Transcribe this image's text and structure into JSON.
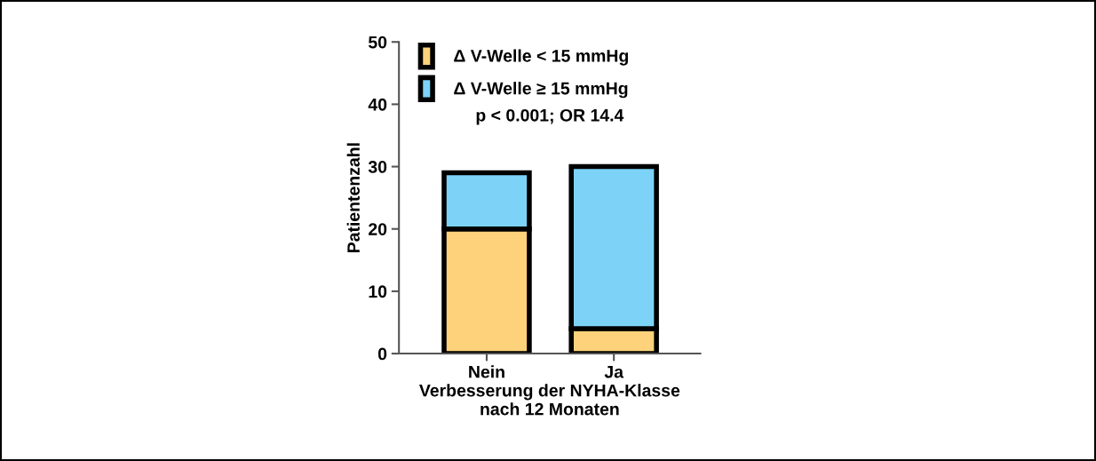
{
  "chart_data": {
    "type": "bar",
    "stacked": true,
    "categories": [
      "Nein",
      "Ja"
    ],
    "xlabel": "Verbesserung der NYHA-Klasse\nnach 12 Monaten",
    "ylabel": "Patientenzahl",
    "series": [
      {
        "name": "Δ V-Welle < 15 mmHg",
        "color": "#fdd27a",
        "values": [
          20,
          4
        ]
      },
      {
        "name": "Δ V-Welle ≥ 15 mmHg",
        "color": "#7dd3f7",
        "values": [
          9,
          26
        ]
      }
    ],
    "ylim": [
      0,
      50
    ],
    "yticks": [
      0,
      10,
      20,
      30,
      40,
      50
    ],
    "grid": false,
    "legend": "top left",
    "annotations": [
      "p < 0.001; OR 14.4"
    ]
  }
}
